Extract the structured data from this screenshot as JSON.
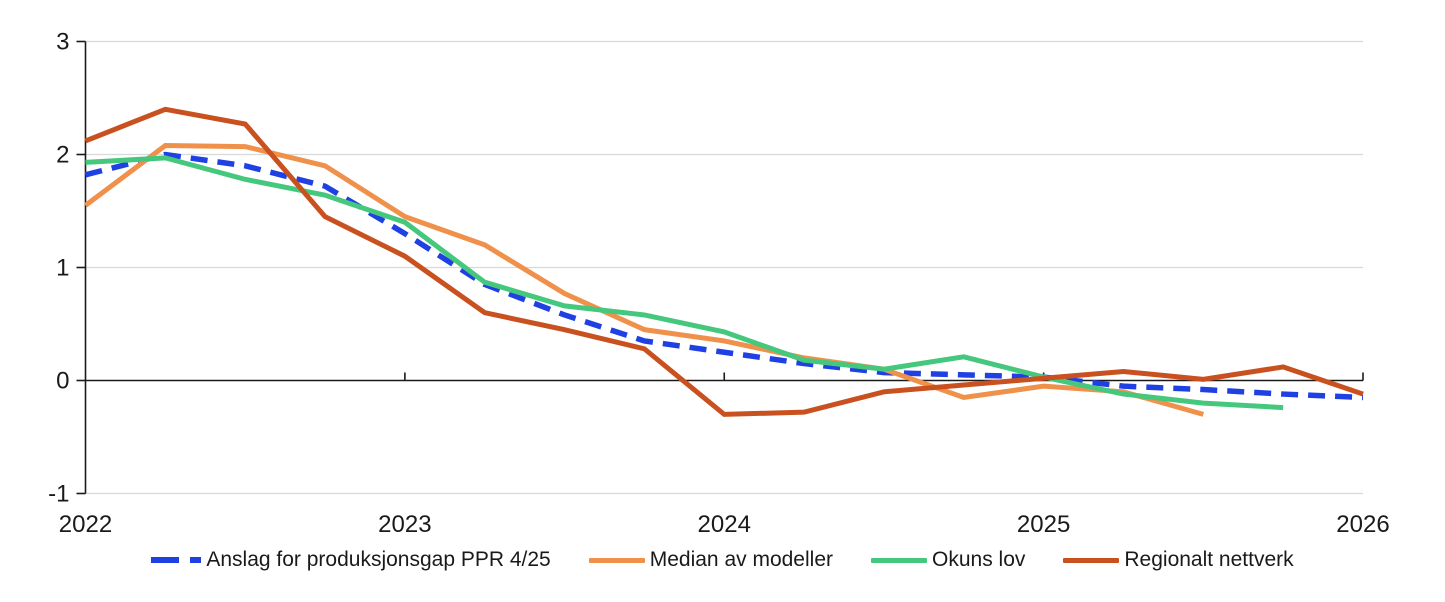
{
  "chart_data": {
    "type": "line",
    "title": "",
    "xlabel": "",
    "ylabel": "",
    "ylim": [
      -1,
      3
    ],
    "grid": true,
    "grid_values": [
      3,
      2,
      1,
      -1
    ],
    "zero_line_value": 0,
    "legend_position": "bottom",
    "grid_color": "#d9d9d9",
    "axis_color": "#1a1a1a",
    "categories": [
      "2022Q1",
      "2022Q2",
      "2022Q3",
      "2022Q4",
      "2023Q1",
      "2023Q2",
      "2023Q3",
      "2023Q4",
      "2024Q1",
      "2024Q2",
      "2024Q3",
      "2024Q4",
      "2025Q1",
      "2025Q2",
      "2025Q3",
      "2025Q4",
      "2026Q1"
    ],
    "x_tick_labels": [
      {
        "index": 0,
        "label": "2022"
      },
      {
        "index": 4,
        "label": "2023"
      },
      {
        "index": 8,
        "label": "2024"
      },
      {
        "index": 12,
        "label": "2025"
      },
      {
        "index": 16,
        "label": "2026"
      }
    ],
    "y_ticks": [
      {
        "value": 3,
        "label": "3"
      },
      {
        "value": 2,
        "label": "2"
      },
      {
        "value": 1,
        "label": "1"
      },
      {
        "value": 0,
        "label": "0"
      },
      {
        "value": -1,
        "label": "-1"
      }
    ],
    "series": [
      {
        "name": "Anslag for produksjonsgap PPR 4/25",
        "color": "#1f41e3",
        "style": "dashed",
        "values": [
          1.82,
          2.0,
          1.9,
          1.72,
          1.3,
          0.85,
          0.58,
          0.35,
          0.25,
          0.15,
          0.07,
          0.05,
          0.03,
          -0.05,
          -0.08,
          -0.12,
          -0.15
        ]
      },
      {
        "name": "Median av modeller",
        "color": "#f0914b",
        "style": "solid",
        "values": [
          1.55,
          2.08,
          2.07,
          1.9,
          1.45,
          1.2,
          0.77,
          0.45,
          0.35,
          0.2,
          0.1,
          -0.15,
          -0.05,
          -0.1,
          -0.3,
          null,
          null
        ]
      },
      {
        "name": "Okuns lov",
        "color": "#45c87d",
        "style": "solid",
        "values": [
          1.93,
          1.97,
          1.78,
          1.64,
          1.4,
          0.87,
          0.66,
          0.58,
          0.43,
          0.18,
          0.1,
          0.21,
          0.03,
          -0.12,
          -0.2,
          -0.24,
          null
        ]
      },
      {
        "name": "Regionalt nettverk",
        "color": "#c9511f",
        "style": "solid",
        "values": [
          2.12,
          2.4,
          2.27,
          1.45,
          1.1,
          0.6,
          0.45,
          0.28,
          -0.3,
          -0.28,
          -0.1,
          -0.04,
          0.02,
          0.08,
          0.01,
          0.12,
          -0.12
        ]
      }
    ]
  }
}
